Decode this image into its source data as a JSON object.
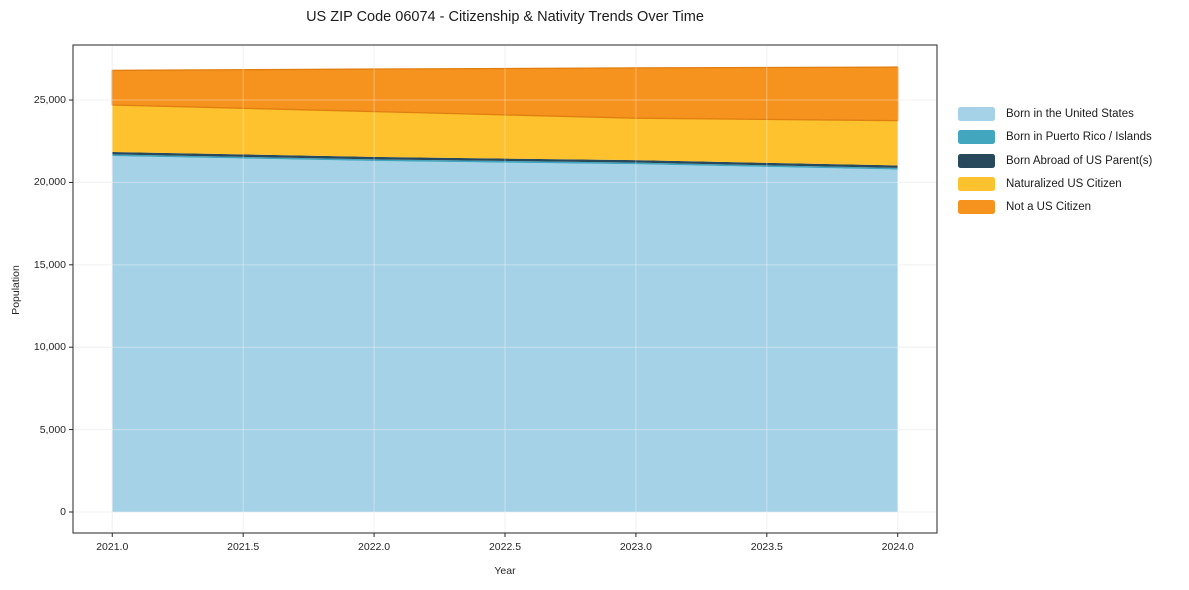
{
  "chart": {
    "title": "US ZIP Code 06074 - Citizenship & Nativity Trends Over Time",
    "xlabel": "Year",
    "ylabel": "Population"
  },
  "chart_data": {
    "type": "area",
    "stacked": true,
    "title": "US ZIP Code 06074 - Citizenship & Nativity Trends Over Time",
    "xlabel": "Year",
    "ylabel": "Population",
    "x": [
      2021,
      2022,
      2023,
      2024
    ],
    "series": [
      {
        "name": "Born in the United States",
        "color": "#a6d2e7",
        "edge": null,
        "values": [
          21600,
          21300,
          21100,
          20780
        ]
      },
      {
        "name": "Born in Puerto Rico / Islands",
        "color": "#41a6be",
        "edge": null,
        "values": [
          100,
          100,
          100,
          100
        ]
      },
      {
        "name": "Born Abroad of US Parent(s)",
        "color": "#28495c",
        "edge": null,
        "values": [
          150,
          150,
          150,
          150
        ]
      },
      {
        "name": "Naturalized US Citizen",
        "color": "#fdc22d",
        "edge": null,
        "values": [
          2850,
          2750,
          2550,
          2720
        ]
      },
      {
        "name": "Not a US Citizen",
        "color": "#f6921e",
        "edge": "#e07e10",
        "values": [
          2100,
          2580,
          3050,
          3250
        ]
      }
    ],
    "xlim": [
      2020.85,
      2024.15
    ],
    "ylim": [
      -1275,
      28340
    ],
    "x_ticks": {
      "values": [
        2021,
        2021.5,
        2022,
        2022.5,
        2023,
        2023.5,
        2024
      ],
      "labels": [
        "2021.0",
        "2021.5",
        "2022.0",
        "2022.5",
        "2023.0",
        "2023.5",
        "2024.0"
      ]
    },
    "y_ticks": {
      "values": [
        0,
        5000,
        10000,
        15000,
        20000,
        25000
      ],
      "labels": [
        "0",
        "5,000",
        "10,000",
        "15,000",
        "20,000",
        "25,000"
      ]
    },
    "grid": true,
    "legend_position": "right",
    "colors": {
      "spine": "#262626",
      "grid_under": "#ececec",
      "grid_over_alpha": "rgba(255,255,255,0.35)",
      "background": "#ffffff"
    }
  }
}
